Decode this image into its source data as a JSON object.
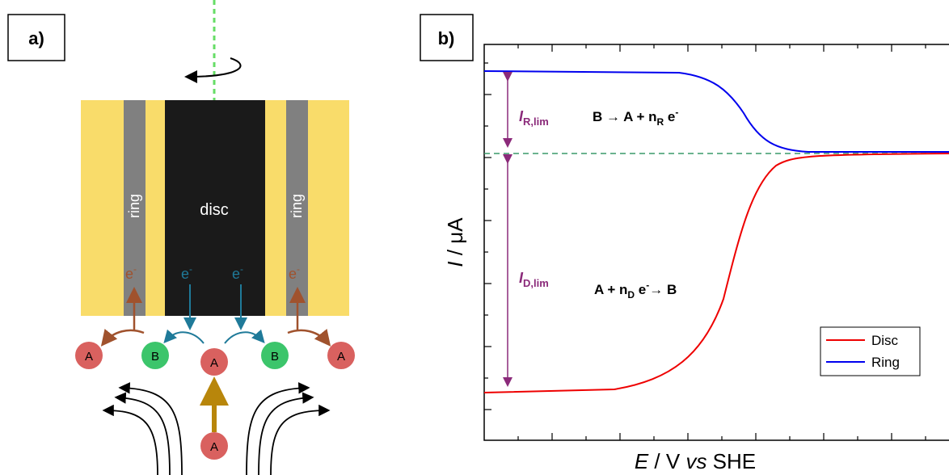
{
  "panel_a": {
    "label": "a)",
    "ring_left": "ring",
    "disc": "disc",
    "ring_right": "ring",
    "electron": {
      "symbol": "e",
      "charge": "-"
    },
    "species": {
      "a": "A",
      "b": "B"
    }
  },
  "panel_b": {
    "label": "b)",
    "y_axis": {
      "symbol": "I",
      "unit": " / μA"
    },
    "x_axis": {
      "symbol": "E",
      "text": " / V ",
      "vs": "vs",
      "ref": " SHE"
    },
    "ring_limit": {
      "symbol": "I",
      "sub": "R,lim"
    },
    "disc_limit": {
      "symbol": "I",
      "sub": "D,lim"
    },
    "ring_reaction": {
      "text": "B → A + n",
      "sub": "R",
      "e": " e",
      "sup": "-"
    },
    "disc_reaction": {
      "text": "A + n",
      "sub": "D",
      "e": " e",
      "sup": "-",
      "rest": "→ B"
    },
    "legend": [
      "Disc",
      "Ring"
    ]
  }
}
